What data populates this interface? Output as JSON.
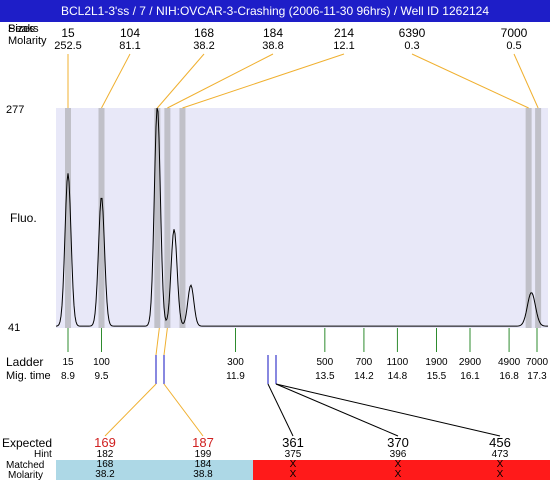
{
  "title": "BCL2L1-3'ss / 7 / NIH:OVCAR-3-Crashing (2006-11-30 96hrs) / Well ID 1262124",
  "top_labels": {
    "sizes_label": "Sizes",
    "peaks_label": "Peaks",
    "molarity_label": "Molarity"
  },
  "peaks": [
    {
      "size": "15",
      "molarity": "252.5"
    },
    {
      "size": "104",
      "molarity": "81.1"
    },
    {
      "size": "168",
      "molarity": "38.2"
    },
    {
      "size": "184",
      "molarity": "38.8"
    },
    {
      "size": "214",
      "molarity": "12.1"
    },
    {
      "size": "6390",
      "molarity": "0.3"
    },
    {
      "size": "7000",
      "molarity": "0.5"
    }
  ],
  "chart_data": {
    "type": "line",
    "ylabel": "Fluo.",
    "ylim": [
      41,
      277
    ],
    "y_ticks": [
      "277",
      "41"
    ],
    "xlabel_ladder": "Ladder",
    "xlabel_migtime": "Mig. time",
    "ladder": [
      {
        "size": "15",
        "time": "8.9"
      },
      {
        "size": "100",
        "time": "9.5"
      },
      {
        "size": "300",
        "time": "11.9"
      },
      {
        "size": "500",
        "time": "13.5"
      },
      {
        "size": "700",
        "time": "14.2"
      },
      {
        "size": "1100",
        "time": "14.8"
      },
      {
        "size": "1900",
        "time": "15.5"
      },
      {
        "size": "2900",
        "time": "16.1"
      },
      {
        "size": "4900",
        "time": "16.8"
      },
      {
        "size": "7000",
        "time": "17.3"
      }
    ],
    "trace_peaks_time": [
      {
        "time": 8.9,
        "fluo": 205
      },
      {
        "time": 9.5,
        "fluo": 180
      },
      {
        "time": 10.5,
        "fluo": 277
      },
      {
        "time": 10.8,
        "fluo": 145
      },
      {
        "time": 11.1,
        "fluo": 85
      },
      {
        "time": 17.2,
        "fluo": 77
      }
    ]
  },
  "expected": {
    "label": "Expected",
    "hint_label": "Hint",
    "matched_label": "Matched",
    "molarity_label": "Molarity",
    "rows": [
      {
        "expected": "169",
        "hint": "182",
        "matched": "168",
        "molarity": "38.2",
        "status": "match"
      },
      {
        "expected": "187",
        "hint": "199",
        "matched": "184",
        "molarity": "38.8",
        "status": "match"
      },
      {
        "expected": "361",
        "hint": "375",
        "matched": "X",
        "molarity": "X",
        "status": "miss"
      },
      {
        "expected": "370",
        "hint": "396",
        "matched": "X",
        "molarity": "X",
        "status": "miss"
      },
      {
        "expected": "456",
        "hint": "473",
        "matched": "X",
        "molarity": "X",
        "status": "miss"
      }
    ]
  },
  "colors": {
    "title_bg": "#1e1ec8",
    "plot_bg": "#e8e8f8",
    "band": "#c0c0c8",
    "connector": "#f0b030",
    "ladder_tick": "#2e8b2e",
    "marker": "#1010c0",
    "expected_hit": "#d02020",
    "match_bg": "#add8e6",
    "miss_bg": "#ff1a1a"
  }
}
